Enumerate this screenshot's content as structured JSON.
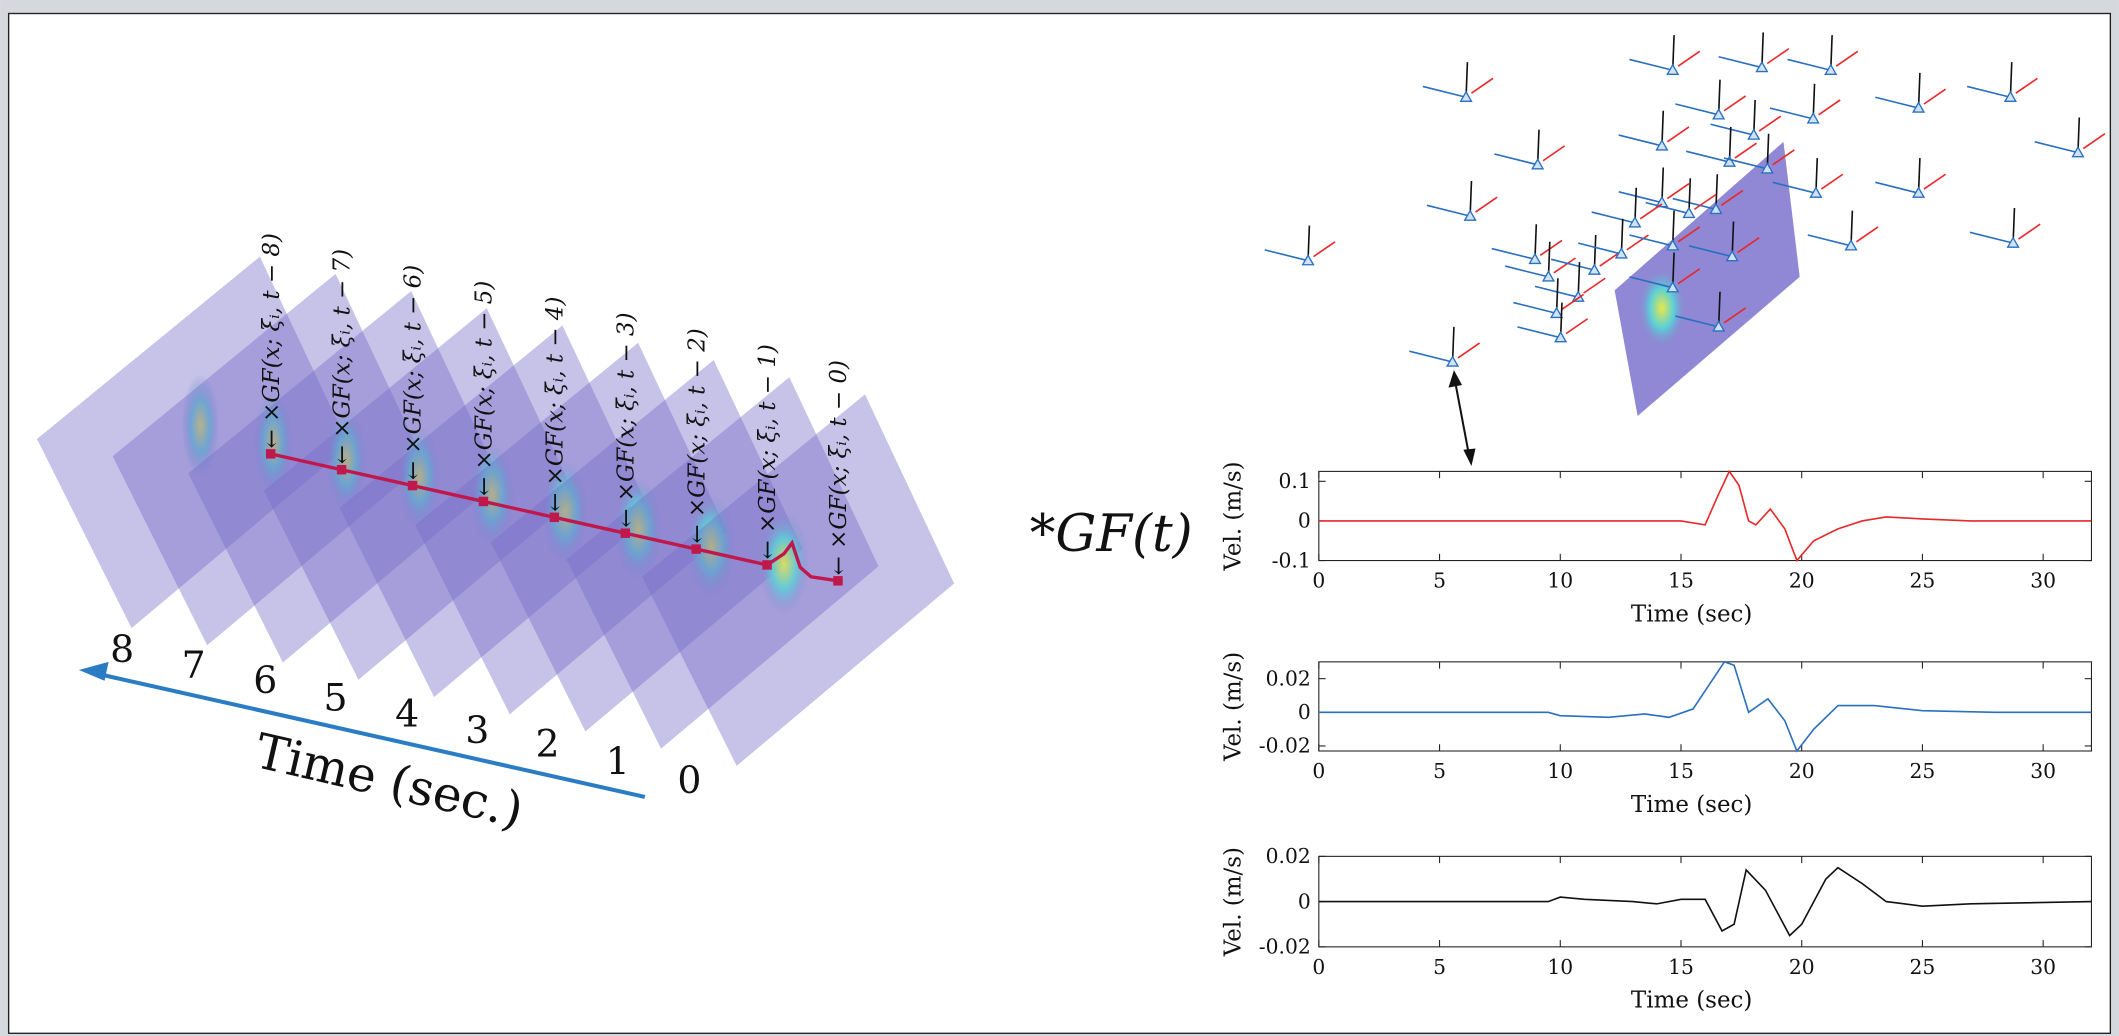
{
  "diagram": {
    "gf_labels": [
      "← ×GF(x; ξᵢ, t − 8)",
      "← ×GF(x; ξᵢ, t − 7)",
      "← ×GF(x; ξᵢ, t − 6)",
      "← ×GF(x; ξᵢ, t − 5)",
      "← ×GF(x; ξᵢ, t − 4)",
      "← ×GF(x; ξᵢ, t − 3)",
      "← ×GF(x; ξᵢ, t − 2)",
      "← ×GF(x; ξᵢ, t − 1)",
      "← ×GF(x; ξᵢ, t − 0)"
    ],
    "time_labels": [
      "8",
      "7",
      "6",
      "5",
      "4",
      "3",
      "2",
      "1",
      "0"
    ],
    "time_axis_label": "Time (sec.)",
    "operator": "*GF(t)"
  },
  "chart_data": [
    {
      "type": "line",
      "xlabel": "Time (sec)",
      "ylabel": "Vel. (m/s)",
      "xlim": [
        0,
        32
      ],
      "xticks": [
        0,
        5,
        10,
        15,
        20,
        25,
        30
      ],
      "ylim": [
        -0.1,
        0.125
      ],
      "yticks": [
        -0.1,
        0,
        0.1
      ],
      "x": [
        0,
        15,
        16,
        16.5,
        17,
        17.4,
        17.8,
        18.1,
        18.7,
        19.3,
        19.8,
        20.5,
        21.5,
        22.5,
        23.5,
        25,
        27,
        32
      ],
      "series": [
        {
          "color": "#e8282a",
          "values": [
            0,
            0,
            -0.01,
            0.06,
            0.125,
            0.09,
            0,
            -0.01,
            0.03,
            -0.02,
            -0.1,
            -0.05,
            -0.02,
            0,
            0.01,
            0.005,
            0,
            0
          ]
        }
      ]
    },
    {
      "type": "line",
      "xlabel": "Time (sec)",
      "ylabel": "Vel. (m/s)",
      "xlim": [
        0,
        32
      ],
      "xticks": [
        0,
        5,
        10,
        15,
        20,
        25,
        30
      ],
      "ylim": [
        -0.023,
        0.03
      ],
      "yticks": [
        -0.02,
        0,
        0.02
      ],
      "x": [
        0,
        9.5,
        10,
        12,
        13.5,
        14.5,
        15.5,
        16.8,
        17.2,
        17.8,
        18.6,
        19.3,
        19.8,
        20.5,
        21.5,
        23,
        25,
        28,
        32
      ],
      "series": [
        {
          "color": "#2a6fc0",
          "values": [
            0,
            0,
            -0.002,
            -0.003,
            -0.001,
            -0.003,
            0.002,
            0.03,
            0.028,
            0,
            0.008,
            -0.005,
            -0.023,
            -0.01,
            0.004,
            0.004,
            0.001,
            0,
            0
          ]
        }
      ]
    },
    {
      "type": "line",
      "xlabel": "Time (sec)",
      "ylabel": "Vel. (m/s)",
      "xlim": [
        0,
        32
      ],
      "xticks": [
        0,
        5,
        10,
        15,
        20,
        25,
        30
      ],
      "ylim": [
        -0.02,
        0.02
      ],
      "yticks": [
        -0.02,
        0,
        0.02
      ],
      "x": [
        0,
        9.5,
        10,
        11,
        13,
        14,
        15,
        16,
        16.7,
        17.2,
        17.7,
        18.5,
        19.5,
        20,
        21,
        21.5,
        22.5,
        23.5,
        25,
        27,
        32
      ],
      "series": [
        {
          "color": "#111111",
          "values": [
            0,
            0,
            0.002,
            0.001,
            0,
            -0.001,
            0.001,
            0.001,
            -0.013,
            -0.01,
            0.014,
            0.005,
            -0.015,
            -0.01,
            0.01,
            0.015,
            0.008,
            0,
            -0.002,
            -0.001,
            0
          ]
        }
      ]
    }
  ]
}
